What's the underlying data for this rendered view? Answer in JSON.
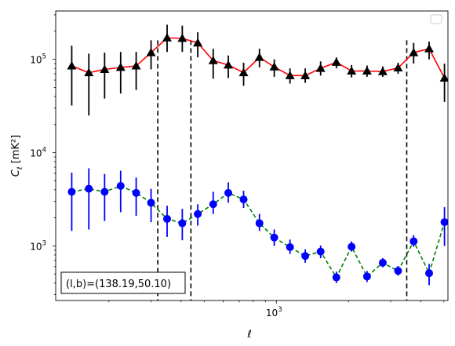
{
  "chart_data": {
    "type": "scatter",
    "title": "",
    "xlabel": "ℓ",
    "ylabel_main": "C",
    "ylabel_sub": "ℓ",
    "ylabel_unit": "[mK²]",
    "xscale": "log",
    "yscale": "log",
    "xlim": [
      120,
      5200
    ],
    "ylim": [
      260,
      330000
    ],
    "grid": false,
    "legend": "top-right (empty)",
    "annotation": "(l,b)=(138.19,50.10)",
    "x_tick_labels": [
      {
        "value": 1000,
        "base": "10",
        "exp": "3"
      }
    ],
    "y_tick_labels": [
      {
        "value": 1000,
        "base": "10",
        "exp": "3"
      },
      {
        "value": 10000,
        "base": "10",
        "exp": "4"
      },
      {
        "value": 100000,
        "base": "10",
        "exp": "5"
      }
    ],
    "vlines": [
      320,
      440,
      3500
    ],
    "series": [
      {
        "marker": "triangle",
        "marker_color": "#000000",
        "line_color": "#ff0000",
        "line_style": "solid",
        "x": [
          140,
          165,
          192,
          224,
          260,
          300,
          350,
          405,
          470,
          545,
          630,
          730,
          850,
          980,
          1140,
          1320,
          1530,
          1780,
          2060,
          2390,
          2780,
          3220,
          3740,
          4340,
          5030
        ],
        "y": [
          85000,
          72000,
          78000,
          82000,
          85000,
          118000,
          170000,
          168000,
          150000,
          97000,
          87000,
          72000,
          105000,
          83000,
          67000,
          67000,
          80000,
          93000,
          75000,
          75000,
          74000,
          81000,
          118000,
          130000,
          63000
        ],
        "y_low": [
          32000,
          25000,
          38000,
          43000,
          47000,
          78000,
          120000,
          120000,
          105000,
          62000,
          63000,
          52000,
          82000,
          65000,
          55000,
          56000,
          67000,
          80000,
          64000,
          65000,
          65000,
          70000,
          90000,
          100000,
          35000
        ],
        "y_high": [
          140000,
          115000,
          118000,
          120000,
          120000,
          160000,
          235000,
          230000,
          195000,
          130000,
          110000,
          92000,
          130000,
          100000,
          80000,
          80000,
          95000,
          105000,
          87000,
          86000,
          84000,
          92000,
          150000,
          155000,
          90000
        ]
      },
      {
        "marker": "circle",
        "marker_color": "#0000ff",
        "line_color": "#008000",
        "line_style": "dashed",
        "x": [
          140,
          165,
          192,
          224,
          260,
          300,
          350,
          405,
          470,
          545,
          630,
          730,
          850,
          980,
          1140,
          1320,
          1530,
          1780,
          2060,
          2390,
          2780,
          3220,
          3740,
          4340,
          5030
        ],
        "y": [
          3800,
          4100,
          3800,
          4400,
          3700,
          2900,
          1950,
          1750,
          2200,
          2800,
          3700,
          3150,
          1750,
          1230,
          970,
          780,
          870,
          460,
          980,
          470,
          660,
          540,
          1120,
          510,
          1800
        ],
        "y_low": [
          1450,
          1500,
          1850,
          2300,
          2100,
          1800,
          1250,
          1150,
          1650,
          2200,
          2900,
          2550,
          1450,
          1000,
          820,
          660,
          740,
          400,
          870,
          410,
          590,
          480,
          980,
          380,
          1000
        ],
        "y_high": [
          6100,
          6800,
          5900,
          6400,
          5400,
          4100,
          2700,
          2500,
          2800,
          3800,
          4800,
          3900,
          2200,
          1500,
          1170,
          920,
          1010,
          530,
          1120,
          540,
          740,
          610,
          1300,
          640,
          2600
        ]
      }
    ]
  }
}
